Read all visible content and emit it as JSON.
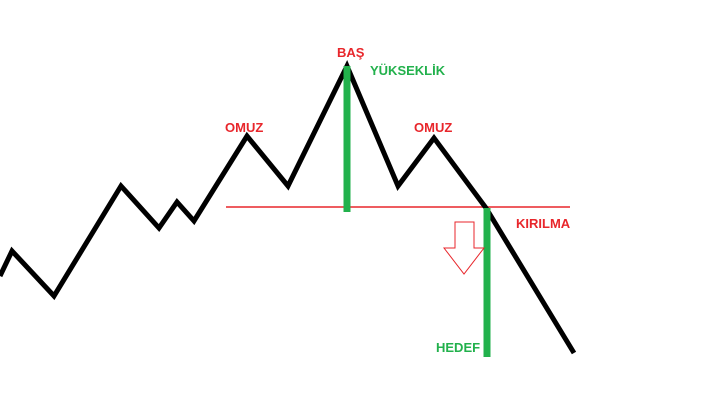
{
  "labels": {
    "head": "BAŞ",
    "height": "YÜKSEKLİK",
    "left_shoulder": "OMUZ",
    "right_shoulder": "OMUZ",
    "breakout": "KIRILMA",
    "target": "HEDEF"
  },
  "colors": {
    "price_line": "#000000",
    "neckline": "#e8262b",
    "red_text": "#e8262b",
    "green": "#22b14c",
    "arrow_fill": "#ffffff",
    "arrow_stroke": "#e8262b",
    "background": "#ffffff"
  },
  "icons": {
    "arrow": "down-arrow-icon"
  }
}
